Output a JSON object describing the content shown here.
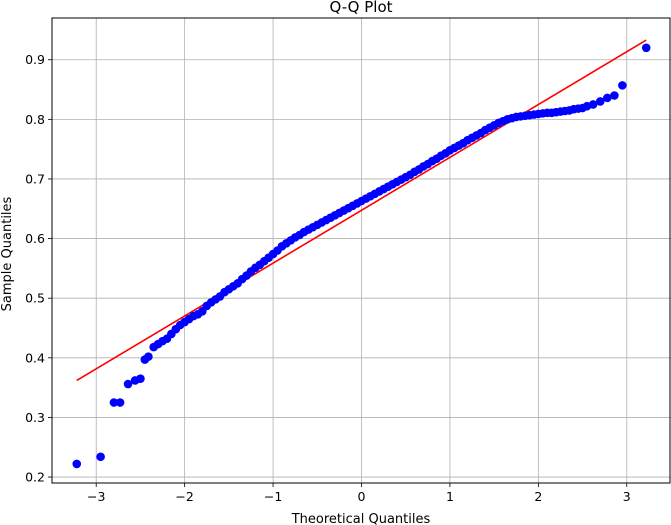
{
  "chart_data": {
    "type": "scatter",
    "title": "Q-Q Plot",
    "xlabel": "Theoretical Quantiles",
    "ylabel": "Sample Quantiles",
    "xlim": [
      -3.5,
      3.5
    ],
    "ylim": [
      0.19,
      0.97
    ],
    "xticks": [
      -3,
      -2,
      -1,
      0,
      1,
      2,
      3
    ],
    "xtick_labels": [
      "−3",
      "−2",
      "−1",
      "0",
      "1",
      "2",
      "3"
    ],
    "yticks": [
      0.2,
      0.3,
      0.4,
      0.5,
      0.6,
      0.7,
      0.8,
      0.9
    ],
    "ytick_labels": [
      "0.2",
      "0.3",
      "0.4",
      "0.5",
      "0.6",
      "0.7",
      "0.8",
      "0.9"
    ],
    "grid": true,
    "marker_color": "#0000ff",
    "line_color": "#ff0000",
    "fit_line": {
      "x": [
        -3.22,
        3.22
      ],
      "y": [
        0.362,
        0.933
      ]
    },
    "series": [
      {
        "x": [
          -3.22,
          -2.95,
          -2.8,
          -2.73,
          -2.64,
          -2.56,
          -2.5,
          -2.45,
          -2.41,
          -2.35,
          -2.3,
          -2.25,
          -2.2,
          -2.15,
          -2.1,
          -2.05,
          -2.0,
          -1.95,
          -1.9,
          -1.85,
          -1.8,
          -1.75,
          -1.7,
          -1.65,
          -1.6,
          -1.55,
          -1.5,
          -1.45,
          -1.4,
          -1.35,
          -1.3,
          -1.25,
          -1.2,
          -1.15,
          -1.1,
          -1.05,
          -1.0,
          -0.95,
          -0.9,
          -0.85,
          -0.8,
          -0.75,
          -0.7,
          -0.65,
          -0.6,
          -0.55,
          -0.5,
          -0.45,
          -0.4,
          -0.35,
          -0.3,
          -0.25,
          -0.2,
          -0.15,
          -0.1,
          -0.05,
          0.0,
          0.05,
          0.1,
          0.15,
          0.2,
          0.25,
          0.3,
          0.35,
          0.4,
          0.45,
          0.5,
          0.55,
          0.6,
          0.65,
          0.7,
          0.75,
          0.8,
          0.85,
          0.9,
          0.95,
          1.0,
          1.05,
          1.1,
          1.15,
          1.2,
          1.25,
          1.3,
          1.35,
          1.4,
          1.45,
          1.5,
          1.55,
          1.6,
          1.65,
          1.7,
          1.75,
          1.8,
          1.85,
          1.9,
          1.95,
          2.0,
          2.05,
          2.1,
          2.15,
          2.2,
          2.25,
          2.3,
          2.35,
          2.4,
          2.45,
          2.5,
          2.55,
          2.62,
          2.7,
          2.78,
          2.86,
          2.95,
          3.22
        ],
        "y": [
          0.222,
          0.234,
          0.325,
          0.325,
          0.356,
          0.362,
          0.365,
          0.397,
          0.402,
          0.418,
          0.423,
          0.428,
          0.432,
          0.44,
          0.448,
          0.455,
          0.46,
          0.465,
          0.47,
          0.473,
          0.478,
          0.487,
          0.493,
          0.498,
          0.503,
          0.51,
          0.515,
          0.52,
          0.525,
          0.532,
          0.538,
          0.545,
          0.551,
          0.556,
          0.562,
          0.568,
          0.574,
          0.58,
          0.587,
          0.592,
          0.597,
          0.602,
          0.606,
          0.611,
          0.615,
          0.619,
          0.623,
          0.627,
          0.631,
          0.635,
          0.639,
          0.643,
          0.647,
          0.651,
          0.655,
          0.659,
          0.663,
          0.667,
          0.671,
          0.675,
          0.679,
          0.683,
          0.687,
          0.691,
          0.695,
          0.699,
          0.703,
          0.707,
          0.712,
          0.716,
          0.721,
          0.725,
          0.73,
          0.734,
          0.739,
          0.743,
          0.748,
          0.752,
          0.756,
          0.76,
          0.765,
          0.769,
          0.773,
          0.777,
          0.782,
          0.786,
          0.79,
          0.794,
          0.797,
          0.8,
          0.802,
          0.804,
          0.805,
          0.806,
          0.807,
          0.808,
          0.809,
          0.81,
          0.811,
          0.811,
          0.812,
          0.813,
          0.814,
          0.815,
          0.817,
          0.818,
          0.819,
          0.822,
          0.825,
          0.83,
          0.836,
          0.84,
          0.857,
          0.92
        ]
      }
    ]
  }
}
